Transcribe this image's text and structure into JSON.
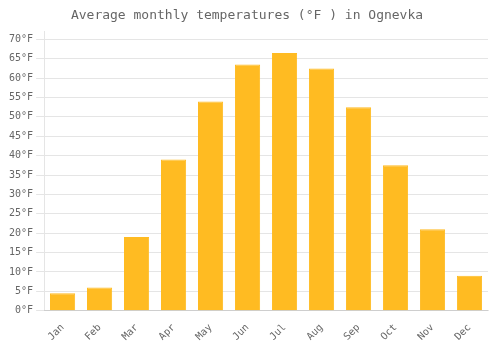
{
  "chart_data": {
    "type": "bar",
    "title": "Average monthly temperatures (°F ) in Ognevka",
    "categories": [
      "Jan",
      "Feb",
      "Mar",
      "Apr",
      "May",
      "Jun",
      "Jul",
      "Aug",
      "Sep",
      "Oct",
      "Nov",
      "Dec"
    ],
    "values": [
      4.5,
      6.0,
      19.0,
      39.0,
      54.0,
      63.5,
      66.5,
      62.5,
      52.5,
      37.5,
      21.0,
      9.0
    ],
    "color": "#FFBB22",
    "ylim": [
      0,
      72
    ],
    "yticks": [
      {
        "value": 0,
        "label": "0°F"
      },
      {
        "value": 5,
        "label": "5°F"
      },
      {
        "value": 10,
        "label": "10°F"
      },
      {
        "value": 15,
        "label": "15°F"
      },
      {
        "value": 20,
        "label": "20°F"
      },
      {
        "value": 25,
        "label": "25°F"
      },
      {
        "value": 30,
        "label": "30°F"
      },
      {
        "value": 35,
        "label": "35°F"
      },
      {
        "value": 40,
        "label": "40°F"
      },
      {
        "value": 45,
        "label": "45°F"
      },
      {
        "value": 50,
        "label": "50°F"
      },
      {
        "value": 55,
        "label": "55°F"
      },
      {
        "value": 60,
        "label": "60°F"
      },
      {
        "value": 65,
        "label": "65°F"
      },
      {
        "value": 70,
        "label": "70°F"
      }
    ],
    "grid": true
  }
}
